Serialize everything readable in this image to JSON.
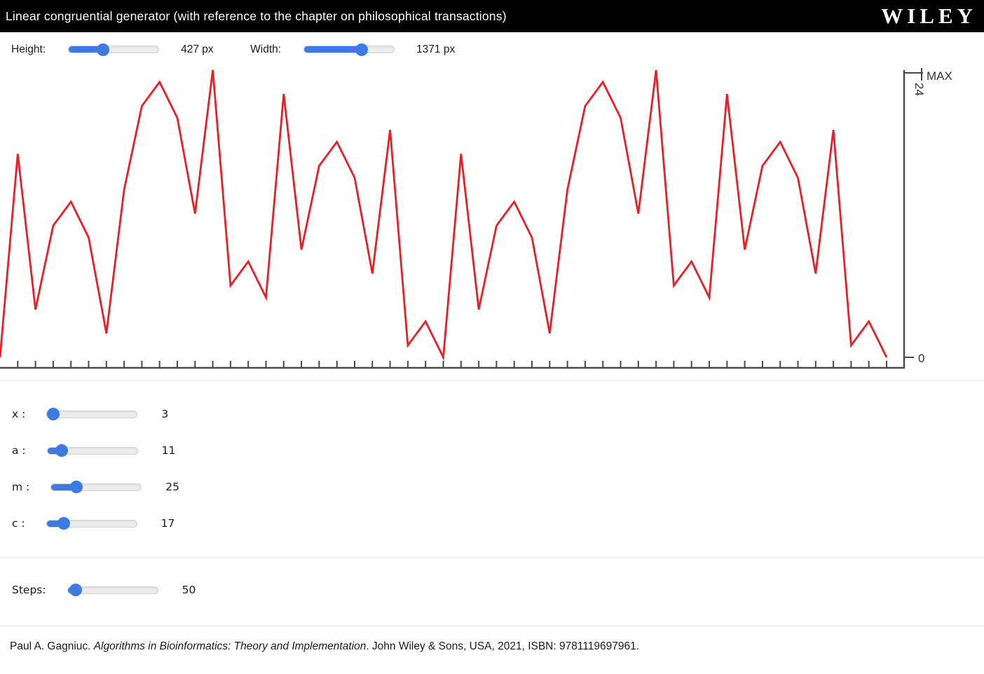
{
  "header": {
    "title": "Linear congruential generator (with reference to the chapter on philosophical transactions)",
    "logo": "WILEY"
  },
  "size_controls": {
    "height": {
      "label": "Height:",
      "value": "427 px",
      "percent": 38
    },
    "width": {
      "label": "Width:",
      "value": "1371 px",
      "percent": 64
    }
  },
  "chart_data": {
    "type": "line",
    "title": "",
    "xlabel": "",
    "ylabel": "",
    "x_start": 0,
    "x_step": 1,
    "n_points": 51,
    "values": [
      0,
      17,
      4,
      11,
      13,
      10,
      2,
      14,
      21,
      23,
      20,
      12,
      24,
      6,
      8,
      5,
      22,
      9,
      16,
      18,
      15,
      7,
      19,
      1,
      3,
      0,
      17,
      4,
      11,
      13,
      10,
      2,
      14,
      21,
      23,
      20,
      12,
      24,
      6,
      8,
      5,
      22,
      9,
      16,
      18,
      15,
      7,
      19,
      1,
      3,
      0
    ],
    "ylim": [
      0,
      24
    ],
    "x_tick_count": 50,
    "grid": "off",
    "legend": "none",
    "y_axis_labels": {
      "max_label": "MAX",
      "max_value": "24",
      "min_value": "0"
    },
    "line_color": "#ee1c25"
  },
  "params": [
    {
      "label": "x :",
      "value": "3",
      "percent": 7
    },
    {
      "label": "a :",
      "value": "11",
      "percent": 16
    },
    {
      "label": "m :",
      "value": "25",
      "percent": 28
    },
    {
      "label": "c :",
      "value": "17",
      "percent": 19
    }
  ],
  "steps": {
    "label": "Steps:",
    "value": "50",
    "percent": 9
  },
  "citation": {
    "prefix": "Paul A. Gagniuc. ",
    "book_title": "Algorithms in Bioinformatics: Theory and Implementation",
    "suffix": ". John Wiley & Sons, USA, 2021, ISBN: 9781119697961."
  },
  "colors": {
    "accent_blue": "#3d7ae4",
    "line_red": "#ee1c25",
    "axis_gray": "#4a4a4a",
    "divider_gray": "#e9e9e9"
  }
}
